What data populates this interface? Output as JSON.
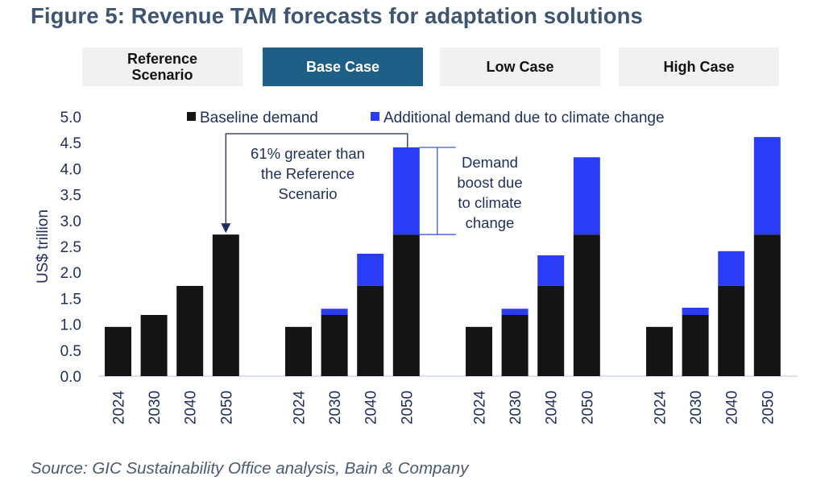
{
  "title": "Figure 5: Revenue TAM forecasts for adaptation solutions",
  "tabs": [
    {
      "label": "Reference\nScenario",
      "active": false
    },
    {
      "label": "Base Case",
      "active": true
    },
    {
      "label": "Low Case",
      "active": false
    },
    {
      "label": "High Case",
      "active": false
    }
  ],
  "source": "Source: GIC Sustainability Office analysis, Bain & Company",
  "colors": {
    "baseline": "#141414",
    "additional": "#2a3cf5",
    "title": "#3d5570",
    "active_tab": "#1d5f86",
    "axis_text": "#1f2f5c",
    "annotation_line": "#1f2f5c",
    "bracket_line": "#3b5bdb"
  },
  "annotations": {
    "arrow_text": [
      "61% greater than",
      "the Reference",
      "Scenario"
    ],
    "bracket_text": [
      "Demand",
      "boost due",
      "to climate",
      "change"
    ]
  },
  "chart_data": {
    "type": "bar",
    "stacked": true,
    "title": "Revenue TAM forecasts for adaptation solutions",
    "xlabel": "",
    "ylabel": "US$ trillion",
    "ylim": [
      0,
      5.0
    ],
    "yticks": [
      "0.0",
      "0.5",
      "1.0",
      "1.5",
      "2.0",
      "2.5",
      "3.0",
      "3.5",
      "4.0",
      "4.5",
      "5.0"
    ],
    "grid": false,
    "legend_position": "top",
    "legend": [
      "Baseline demand",
      "Additional demand due to climate change"
    ],
    "groups": [
      {
        "name": "Reference Scenario",
        "categories": [
          "2024",
          "2030",
          "2040",
          "2050"
        ],
        "series": [
          {
            "name": "Baseline demand",
            "values": [
              0.95,
              1.18,
              1.74,
              2.73
            ]
          },
          {
            "name": "Additional demand due to climate change",
            "values": [
              0,
              0,
              0,
              0
            ]
          }
        ]
      },
      {
        "name": "Base Case",
        "categories": [
          "2024",
          "2030",
          "2040",
          "2050"
        ],
        "series": [
          {
            "name": "Baseline demand",
            "values": [
              0.95,
              1.18,
              1.74,
              2.73
            ]
          },
          {
            "name": "Additional demand due to climate change",
            "values": [
              0,
              0.12,
              0.62,
              1.68
            ]
          }
        ]
      },
      {
        "name": "Low Case",
        "categories": [
          "2024",
          "2030",
          "2040",
          "2050"
        ],
        "series": [
          {
            "name": "Baseline demand",
            "values": [
              0.95,
              1.18,
              1.74,
              2.73
            ]
          },
          {
            "name": "Additional demand due to climate change",
            "values": [
              0,
              0.12,
              0.59,
              1.49
            ]
          }
        ]
      },
      {
        "name": "High Case",
        "categories": [
          "2024",
          "2030",
          "2040",
          "2050"
        ],
        "series": [
          {
            "name": "Baseline demand",
            "values": [
              0.95,
              1.18,
              1.74,
              2.73
            ]
          },
          {
            "name": "Additional demand due to climate change",
            "values": [
              0,
              0.14,
              0.67,
              1.88
            ]
          }
        ]
      }
    ]
  }
}
